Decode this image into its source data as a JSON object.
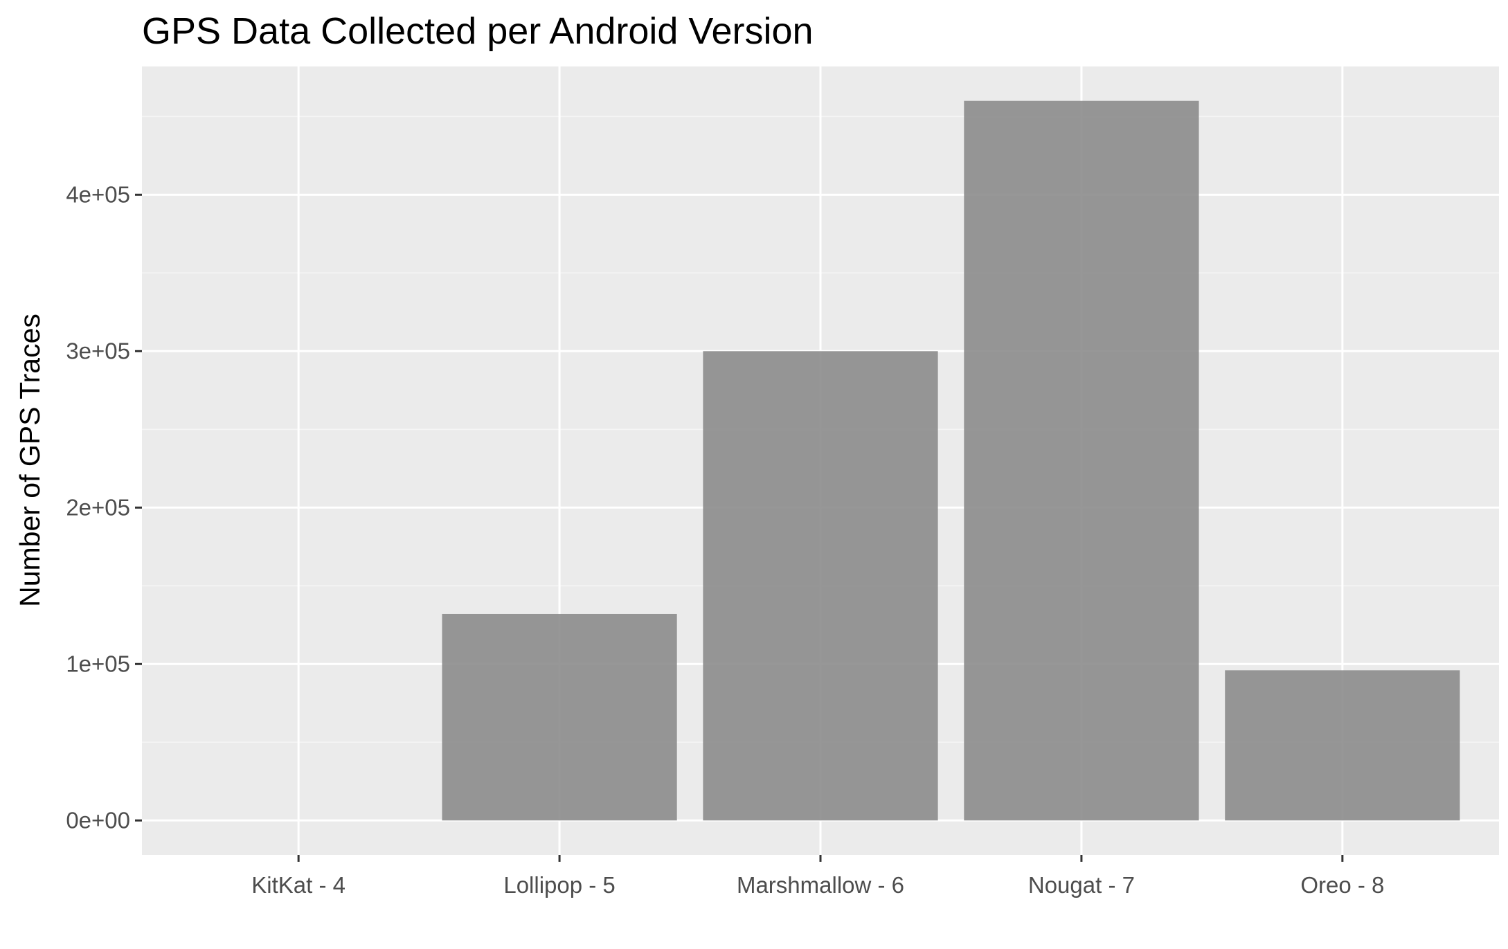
{
  "chart_data": {
    "type": "bar",
    "title": "GPS Data Collected per Android Version",
    "xlabel": "",
    "ylabel": "Number of GPS Traces",
    "categories": [
      "KitKat - 4",
      "Lollipop - 5",
      "Marshmallow - 6",
      "Nougat - 7",
      "Oreo - 8"
    ],
    "values": [
      0,
      132000,
      300000,
      460000,
      96000
    ],
    "ylim": [
      -22000,
      482000
    ],
    "y_ticks": [
      0,
      100000,
      200000,
      300000,
      400000
    ],
    "y_tick_labels": [
      "0e+00",
      "1e+05",
      "2e+05",
      "3e+05",
      "4e+05"
    ],
    "grid": true,
    "legend": "none",
    "colors": {
      "bar": "#8c8c8c",
      "panel": "#ebebeb",
      "grid_major": "#ffffff",
      "grid_minor": "#f5f5f5"
    }
  }
}
